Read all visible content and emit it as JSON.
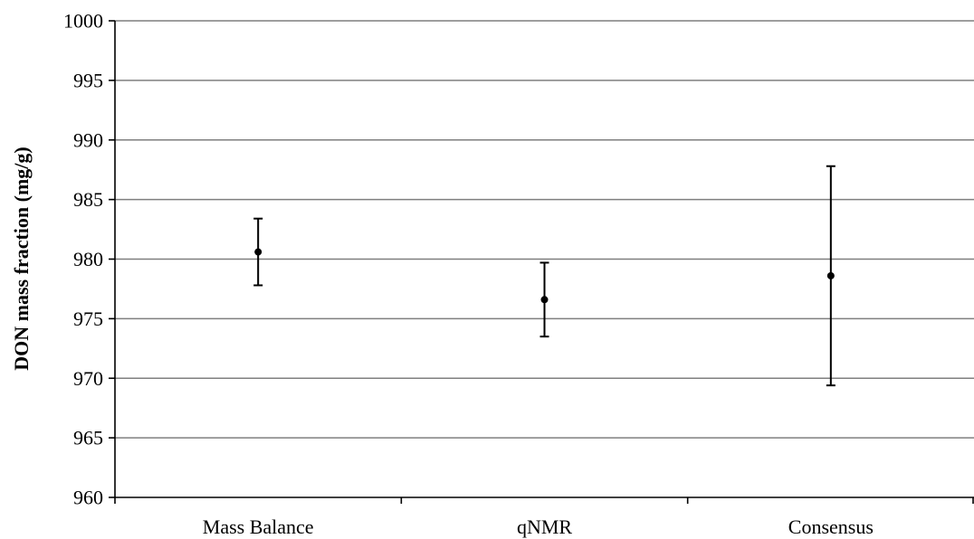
{
  "chart_data": {
    "type": "scatter",
    "title": "",
    "xlabel": "",
    "ylabel": "DON mass fraction (mg/g)",
    "categories": [
      "Mass Balance",
      "qNMR",
      "Consensus"
    ],
    "series": [
      {
        "values": [
          980.6,
          976.6,
          978.6
        ],
        "error_low": [
          977.8,
          973.5,
          969.4
        ],
        "error_high": [
          983.4,
          979.7,
          987.8
        ]
      }
    ],
    "ylim": [
      960,
      1000
    ],
    "yticks": [
      960,
      965,
      970,
      975,
      980,
      985,
      990,
      995,
      1000
    ],
    "grid": true,
    "legend": "none",
    "colors": {
      "gridline": "#7f7f7f",
      "marker": "#000000",
      "axis": "#000000"
    }
  }
}
